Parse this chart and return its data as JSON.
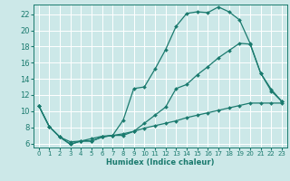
{
  "xlabel": "Humidex (Indice chaleur)",
  "background_color": "#cce8e8",
  "grid_color": "#ffffff",
  "line_color": "#1a7a6e",
  "xlim": [
    -0.5,
    23.5
  ],
  "ylim": [
    5.5,
    23.2
  ],
  "xticks": [
    0,
    1,
    2,
    3,
    4,
    5,
    6,
    7,
    8,
    9,
    10,
    11,
    12,
    13,
    14,
    15,
    16,
    17,
    18,
    19,
    20,
    21,
    22,
    23
  ],
  "yticks": [
    6,
    8,
    10,
    12,
    14,
    16,
    18,
    20,
    22
  ],
  "series1_x": [
    0,
    1,
    2,
    3,
    4,
    5,
    6,
    7,
    8,
    9,
    10,
    11,
    12,
    13,
    14,
    15,
    16,
    17,
    18,
    19,
    20,
    21,
    22,
    23
  ],
  "series1_y": [
    10.7,
    8.1,
    6.8,
    5.9,
    6.3,
    6.3,
    6.8,
    7.0,
    8.9,
    12.8,
    13.0,
    15.2,
    17.6,
    20.5,
    22.1,
    22.3,
    22.2,
    22.9,
    22.3,
    21.3,
    18.4,
    14.7,
    12.7,
    11.2
  ],
  "series2_x": [
    0,
    1,
    2,
    3,
    4,
    5,
    6,
    7,
    8,
    9,
    10,
    11,
    12,
    13,
    14,
    15,
    16,
    17,
    18,
    19,
    20,
    21,
    22,
    23
  ],
  "series2_y": [
    10.7,
    8.1,
    6.8,
    5.9,
    6.3,
    6.3,
    6.8,
    7.0,
    7.2,
    7.5,
    7.9,
    8.2,
    8.5,
    8.8,
    9.2,
    9.5,
    9.8,
    10.1,
    10.4,
    10.7,
    11.0,
    11.0,
    11.0,
    11.0
  ],
  "series3_x": [
    0,
    1,
    2,
    3,
    4,
    5,
    6,
    7,
    8,
    9,
    10,
    11,
    12,
    13,
    14,
    15,
    16,
    17,
    18,
    19,
    20,
    21,
    22,
    23
  ],
  "series3_y": [
    10.7,
    8.1,
    6.8,
    6.2,
    6.3,
    6.6,
    6.9,
    7.0,
    7.0,
    7.5,
    8.5,
    9.5,
    10.5,
    12.8,
    13.3,
    14.5,
    15.5,
    16.6,
    17.5,
    18.4,
    18.3,
    14.7,
    12.5,
    11.2
  ]
}
